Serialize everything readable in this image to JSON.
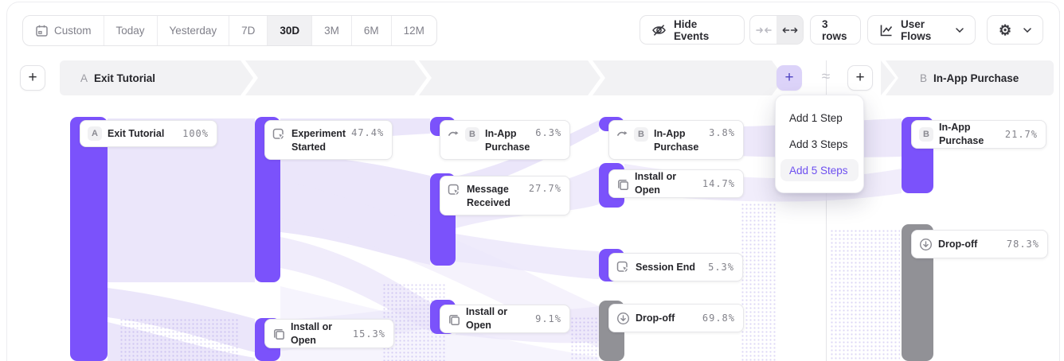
{
  "toolbar": {
    "date_ranges": [
      {
        "label": "Custom",
        "icon": "calendar",
        "selected": false
      },
      {
        "label": "Today",
        "selected": false
      },
      {
        "label": "Yesterday",
        "selected": false
      },
      {
        "label": "7D",
        "selected": false
      },
      {
        "label": "30D",
        "selected": true
      },
      {
        "label": "3M",
        "selected": false
      },
      {
        "label": "6M",
        "selected": false
      },
      {
        "label": "12M",
        "selected": false
      }
    ],
    "hide_events_label": "Hide Events",
    "rows_label": "3 rows",
    "view_label": "User Flows"
  },
  "flow_header": {
    "start_letter": "A",
    "start_label": "Exit Tutorial",
    "end_letter": "B",
    "end_label": "In-App Purchase",
    "approx": "≈",
    "plus": "+"
  },
  "add_menu": {
    "items": [
      {
        "label": "Add 1 Step",
        "active": false
      },
      {
        "label": "Add 3 Steps",
        "active": false
      },
      {
        "label": "Add 5 Steps",
        "active": true
      }
    ]
  },
  "icons": {
    "gear": "⚙"
  },
  "colors": {
    "purple": "#7b52fb",
    "gray": "#919196",
    "ribbon": "#ebe6fa",
    "accent_text": "#6d4ff0"
  },
  "nodes": [
    {
      "label": "Exit Tutorial",
      "value": "100%",
      "badge": "A",
      "icon": null,
      "color": "purple",
      "lines": 1,
      "bar": [
        88,
        147,
        47,
        307
      ],
      "card": [
        100,
        151,
        173,
        34
      ]
    },
    {
      "label": "Experiment Started",
      "value": "47.4%",
      "badge": null,
      "icon": "event",
      "color": "purple",
      "lines": 2,
      "bar": [
        320,
        147,
        32,
        208
      ],
      "card": [
        332,
        151,
        161,
        50
      ]
    },
    {
      "label": "Install or Open",
      "value": "15.3%",
      "badge": null,
      "icon": "squares",
      "color": "purple",
      "lines": 1,
      "bar": [
        320,
        400,
        32,
        54
      ],
      "card": [
        332,
        401,
        163,
        37
      ]
    },
    {
      "label": "In-App Purchase",
      "value": "6.3%",
      "badge": "B",
      "icon": "trend",
      "color": "purple",
      "lines": 2,
      "bar": [
        540,
        147,
        32,
        24
      ],
      "card": [
        552,
        151,
        164,
        50
      ]
    },
    {
      "label": "Message Received",
      "value": "27.7%",
      "badge": null,
      "icon": "event",
      "color": "purple",
      "lines": 2,
      "bar": [
        540,
        218,
        32,
        116
      ],
      "card": [
        552,
        221,
        164,
        50
      ]
    },
    {
      "label": "Install or Open",
      "value": "9.1%",
      "badge": null,
      "icon": "squares",
      "color": "purple",
      "lines": 1,
      "bar": [
        540,
        377,
        32,
        43
      ],
      "card": [
        552,
        383,
        164,
        36
      ]
    },
    {
      "label": "In-App Purchase",
      "value": "3.8%",
      "badge": "B",
      "icon": "trend",
      "color": "purple",
      "lines": 2,
      "bar": [
        752,
        147,
        32,
        18
      ],
      "card": [
        764,
        151,
        170,
        50
      ]
    },
    {
      "label": "Install or Open",
      "value": "14.7%",
      "badge": null,
      "icon": "squares",
      "color": "purple",
      "lines": 1,
      "bar": [
        752,
        205,
        32,
        56
      ],
      "card": [
        764,
        213,
        170,
        36
      ]
    },
    {
      "label": "Session End",
      "value": "5.3%",
      "badge": null,
      "icon": "event",
      "color": "purple",
      "lines": 1,
      "bar": [
        752,
        313,
        32,
        41
      ],
      "card": [
        764,
        318,
        169,
        36
      ]
    },
    {
      "label": "Drop-off",
      "value": "69.8%",
      "badge": null,
      "icon": "dropoff",
      "color": "gray",
      "lines": 1,
      "bar": [
        752,
        378,
        32,
        76
      ],
      "card": [
        764,
        382,
        170,
        36
      ]
    },
    {
      "label": "In-App Purchase",
      "value": "21.7%",
      "badge": "B",
      "icon": null,
      "color": "purple",
      "lines": 1,
      "bar": [
        1132,
        147,
        40,
        96
      ],
      "card": [
        1144,
        151,
        170,
        36
      ]
    },
    {
      "label": "Drop-off",
      "value": "78.3%",
      "badge": null,
      "icon": "dropoff",
      "color": "gray",
      "lines": 1,
      "bar": [
        1132,
        282,
        40,
        172
      ],
      "card": [
        1144,
        289,
        172,
        36
      ]
    }
  ]
}
